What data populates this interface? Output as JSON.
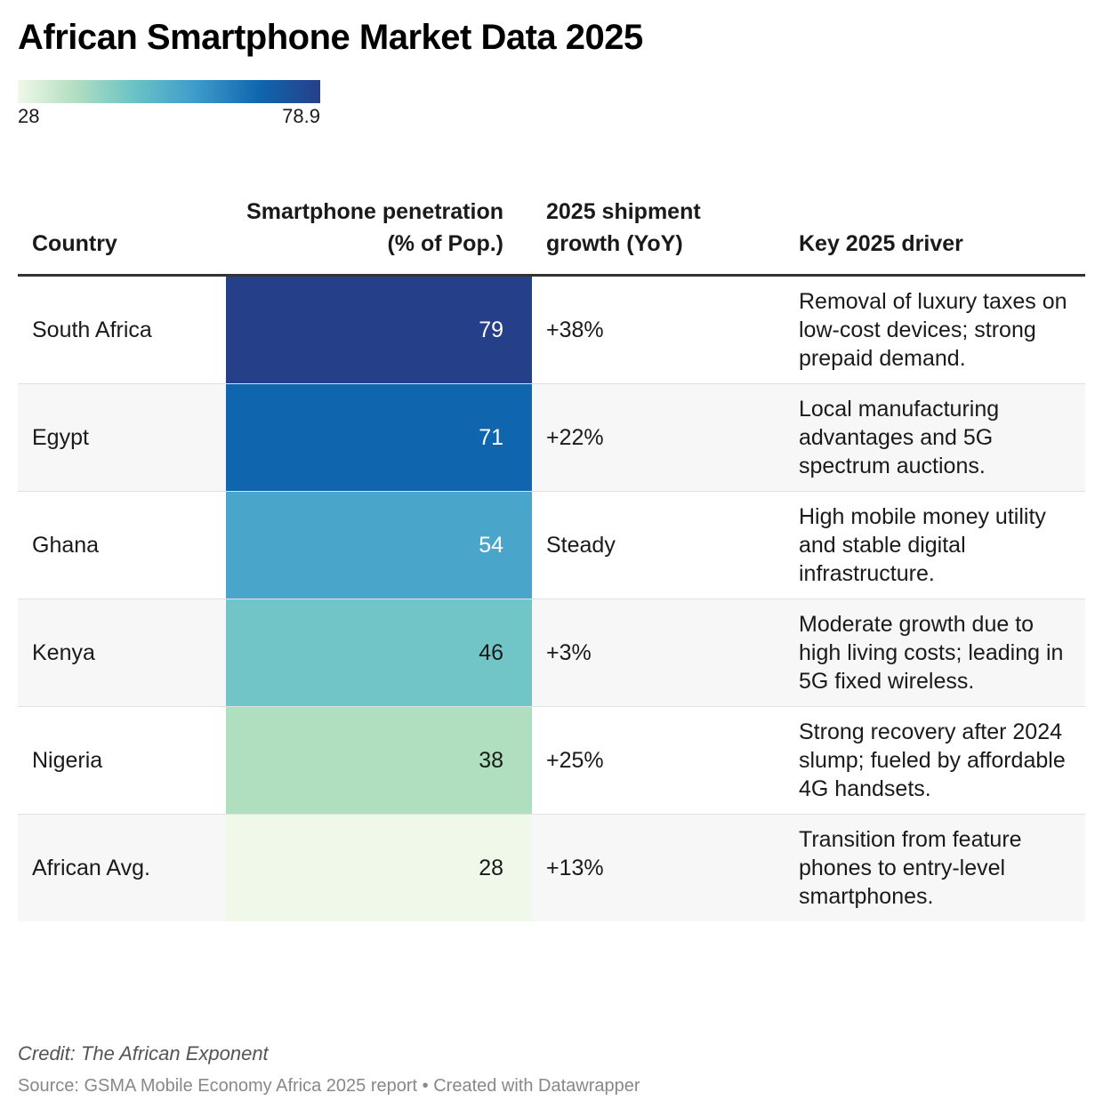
{
  "title": "African Smartphone Market Data 2025",
  "legend": {
    "min": "28",
    "max": "78.9"
  },
  "headers": {
    "country": "Country",
    "penetration": "Smartphone penetration (% of Pop.)",
    "growth": "2025 shipment growth (YoY)",
    "driver": "Key 2025 driver"
  },
  "chart_data": {
    "type": "table",
    "title": "African Smartphone Market Data 2025",
    "color_scale": {
      "min": 28,
      "max": 78.9,
      "stops": [
        "#f0f8e9",
        "#b5e0c1",
        "#6cc3c6",
        "#3f9dcb",
        "#1066ae",
        "#253f89"
      ]
    },
    "columns": [
      "Country",
      "Smartphone penetration (% of Pop.)",
      "2025 shipment growth (YoY)",
      "Key 2025 driver"
    ],
    "rows": [
      {
        "country": "South Africa",
        "penetration": 79,
        "growth": "+38%",
        "driver": "Removal of luxury taxes on low-cost devices; strong prepaid demand.",
        "fill": "#253f89",
        "text_color": "#ffffff"
      },
      {
        "country": "Egypt",
        "penetration": 71,
        "growth": "+22%",
        "driver": "Local manufacturing advantages and 5G spectrum auctions.",
        "fill": "#1066ae",
        "text_color": "#ffffff"
      },
      {
        "country": "Ghana",
        "penetration": 54,
        "growth": "Steady",
        "driver": "High mobile money utility and stable digital infrastructure.",
        "fill": "#49a6ca",
        "text_color": "#ffffff"
      },
      {
        "country": "Kenya",
        "penetration": 46,
        "growth": "+3%",
        "driver": "Moderate growth due to high living costs; leading in 5G fixed wireless.",
        "fill": "#72c5c6",
        "text_color": "#1a1a1a"
      },
      {
        "country": "Nigeria",
        "penetration": 38,
        "growth": "+25%",
        "driver": "Strong recovery after 2024 slump; fueled by affordable 4G handsets.",
        "fill": "#afdfbe",
        "text_color": "#1a1a1a"
      },
      {
        "country": "African Avg.",
        "penetration": 28,
        "growth": "+13%",
        "driver": "Transition from feature phones to entry-level smartphones.",
        "fill": "#f0f8e9",
        "text_color": "#1a1a1a"
      }
    ]
  },
  "footer": {
    "credit": "Credit: The African Exponent",
    "source": "Source: GSMA Mobile Economy Africa 2025 report • Created with Datawrapper"
  }
}
